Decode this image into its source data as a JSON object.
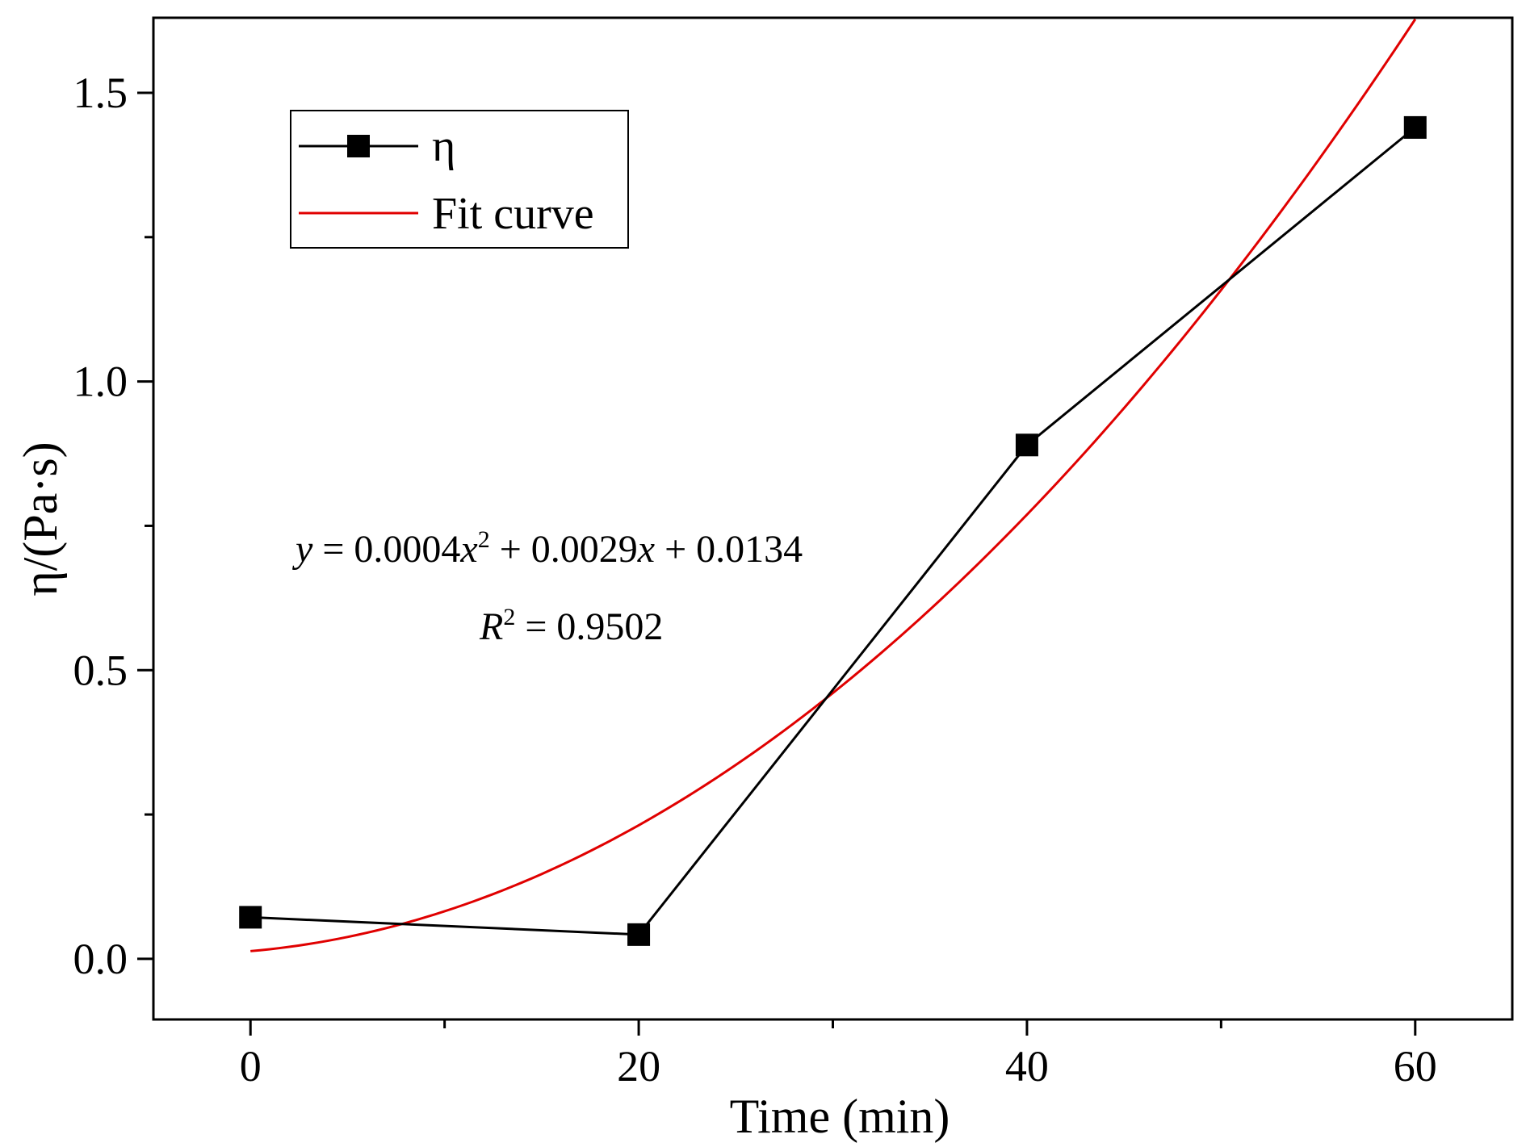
{
  "chart_data": {
    "type": "line",
    "title": "",
    "xlabel": "Time (min)",
    "ylabel": "η/(Pa·s)",
    "xlim": [
      -5,
      65
    ],
    "ylim": [
      -0.105,
      1.63
    ],
    "x_major_ticks": [
      0,
      20,
      40,
      60
    ],
    "x_minor_ticks": [
      10,
      30,
      50
    ],
    "x_tick_labels": [
      "0",
      "20",
      "40",
      "60"
    ],
    "y_major_ticks": [
      0.0,
      0.5,
      1.0,
      1.5
    ],
    "y_minor_ticks": [
      0.25,
      0.75,
      1.25
    ],
    "y_tick_labels": [
      "0.0",
      "0.5",
      "1.0",
      "1.5"
    ],
    "grid": false,
    "legend_position": "top-left",
    "series": [
      {
        "name": "η",
        "kind": "line+square-markers",
        "color": "#000000",
        "x": [
          0,
          20,
          40,
          60
        ],
        "y": [
          0.072,
          0.042,
          0.89,
          1.44
        ]
      },
      {
        "name": "Fit curve",
        "kind": "line",
        "color": "#e00000",
        "equation": {
          "a": 0.0004,
          "b": 0.0029,
          "c": 0.0134
        },
        "x_range": [
          0,
          60
        ]
      }
    ],
    "annotations": {
      "equation": {
        "y_var": "y",
        "p1": " = 0.0004",
        "x_var": "x",
        "sup": "2",
        "p2": " + 0.0029",
        "x_var2": "x",
        "p3": " + 0.0134"
      },
      "r2": {
        "var": "R",
        "sup": "2",
        "rest": " = 0.9502"
      }
    }
  }
}
